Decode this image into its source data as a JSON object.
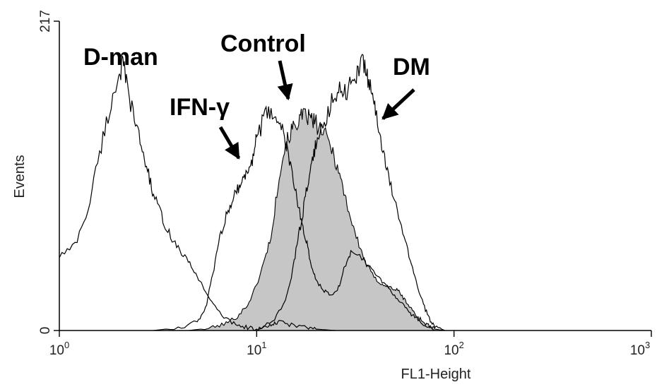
{
  "chart_data": {
    "type": "area",
    "xlabel": "FL1-Height",
    "ylabel": "Events",
    "x_scale": "log",
    "xlim": [
      1,
      1000
    ],
    "ylim": [
      0,
      217
    ],
    "x_ticks": [
      {
        "value": 1,
        "base": "10",
        "exp": "0"
      },
      {
        "value": 10,
        "base": "10",
        "exp": "1"
      },
      {
        "value": 100,
        "base": "10",
        "exp": "2"
      },
      {
        "value": 1000,
        "base": "10",
        "exp": "3"
      }
    ],
    "y_ticks": [
      {
        "value": 0,
        "label": "0"
      },
      {
        "value": 217,
        "label": "217"
      }
    ],
    "grid": false,
    "colors": {
      "control_fill": "#c6c6c6",
      "line": "#000000"
    },
    "series": [
      {
        "name": "Control",
        "filled": true,
        "x": [
          4.5,
          6,
          7,
          8,
          9,
          10,
          11,
          12,
          13,
          14,
          15,
          16,
          17,
          18,
          19,
          20,
          22,
          24,
          26,
          28,
          30,
          33,
          36,
          40,
          44,
          48,
          52,
          56,
          60,
          65,
          70,
          75,
          80,
          90
        ],
        "y": [
          0,
          2,
          5,
          10,
          18,
          32,
          50,
          70,
          110,
          130,
          140,
          146,
          150,
          150,
          148,
          145,
          138,
          128,
          112,
          95,
          78,
          60,
          46,
          36,
          32,
          30,
          28,
          22,
          16,
          10,
          6,
          3,
          1,
          0
        ]
      },
      {
        "name": "D-man",
        "filled": false,
        "x": [
          1,
          1.2,
          1.4,
          1.6,
          1.8,
          2,
          2.1,
          2.2,
          2.4,
          2.6,
          2.8,
          3,
          3.3,
          3.6,
          4,
          4.5,
          5,
          5.5,
          6,
          7,
          8,
          9,
          10,
          11,
          12,
          13,
          15,
          18,
          20,
          25
        ],
        "y": [
          52,
          60,
          85,
          125,
          155,
          180,
          186,
          172,
          148,
          130,
          112,
          95,
          80,
          68,
          58,
          48,
          38,
          28,
          18,
          8,
          4,
          2,
          1,
          2,
          4,
          6,
          4,
          2,
          1,
          0
        ]
      },
      {
        "name": "IFN-γ",
        "filled": false,
        "x": [
          3,
          4,
          5,
          5.5,
          6,
          6.5,
          7,
          7.5,
          8,
          8.5,
          9,
          9.5,
          10,
          11,
          12,
          13,
          14,
          15,
          16,
          17,
          18,
          19,
          20,
          22,
          24,
          26,
          28,
          30,
          35,
          40,
          45,
          50,
          55,
          60,
          65,
          70,
          80
        ],
        "y": [
          0,
          2,
          6,
          15,
          40,
          65,
          80,
          92,
          100,
          105,
          112,
          120,
          135,
          150,
          152,
          148,
          132,
          112,
          92,
          75,
          60,
          45,
          35,
          28,
          25,
          30,
          45,
          55,
          50,
          40,
          32,
          25,
          18,
          12,
          8,
          4,
          0
        ]
      },
      {
        "name": "DM",
        "filled": false,
        "x": [
          10,
          12,
          14,
          15,
          16,
          17,
          18,
          19,
          20,
          22,
          24,
          26,
          28,
          30,
          32,
          34,
          36,
          38,
          40,
          43,
          46,
          50,
          55,
          60,
          65,
          70,
          75,
          80,
          90
        ],
        "y": [
          0,
          6,
          20,
          38,
          60,
          80,
          100,
          118,
          130,
          145,
          162,
          170,
          168,
          172,
          180,
          188,
          182,
          170,
          152,
          132,
          110,
          90,
          70,
          50,
          32,
          18,
          8,
          3,
          0
        ]
      }
    ],
    "annotations": [
      {
        "text": "D-man",
        "target": "D-man"
      },
      {
        "text": "IFN-γ",
        "target": "IFN-γ"
      },
      {
        "text": "Control",
        "target": "Control"
      },
      {
        "text": "DM",
        "target": "DM"
      }
    ]
  }
}
